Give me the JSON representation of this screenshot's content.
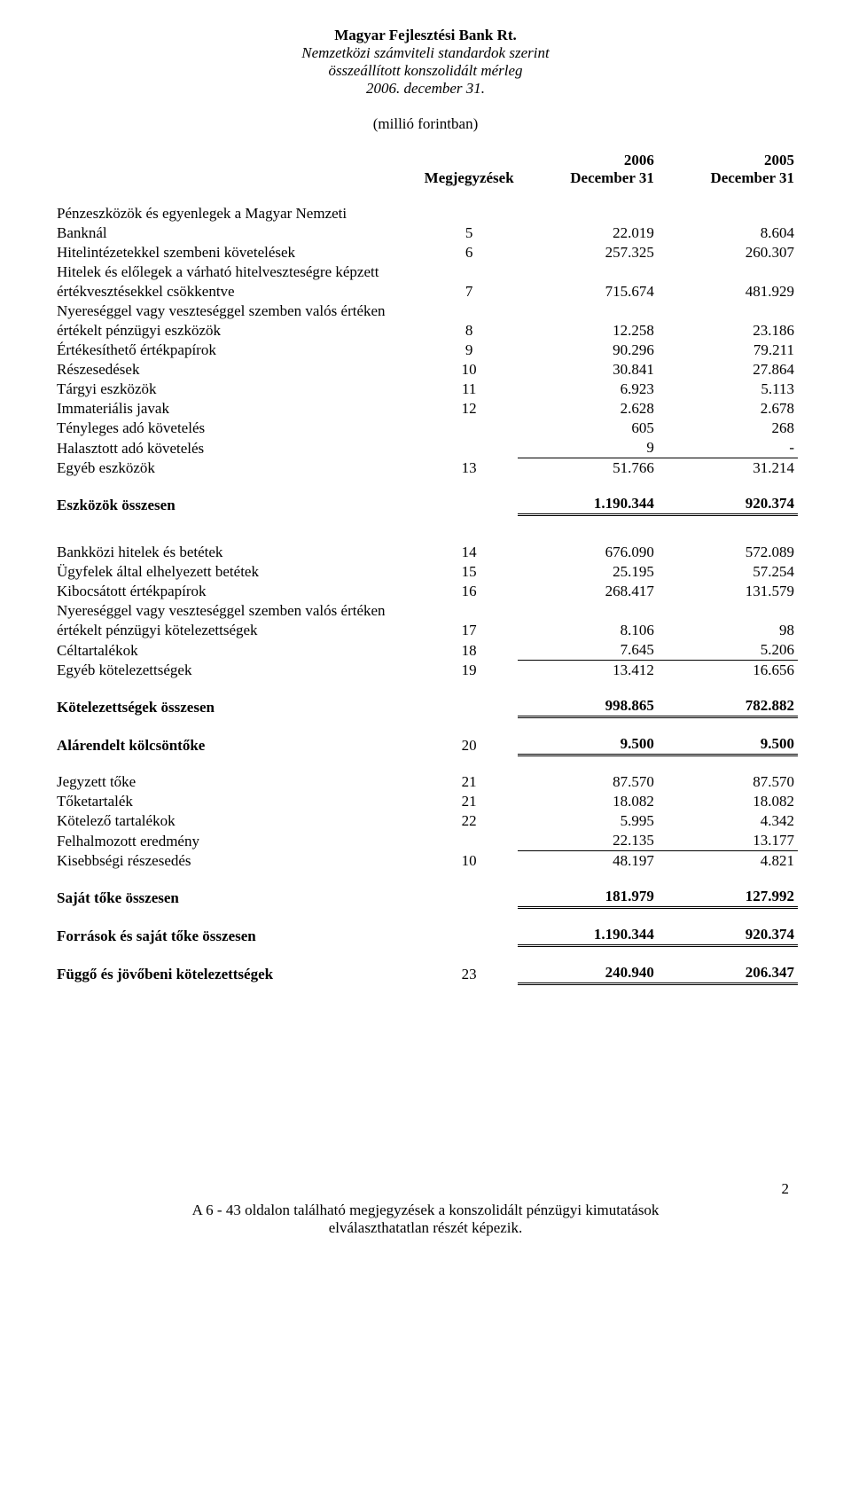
{
  "header": {
    "company": "Magyar Fejlesztési Bank Rt.",
    "subtitle1": "Nemzetközi számviteli standardok szerint",
    "subtitle2": "összeállított konszolidált mérleg",
    "date": "2006. december 31."
  },
  "unit": "(millió forintban)",
  "columns": {
    "notes": "Megjegyzések",
    "col1_a": "2006",
    "col1_b": "December 31",
    "col2_a": "2005",
    "col2_b": "December 31"
  },
  "assets": [
    {
      "label_a": "Pénzeszközök és egyenlegek a Magyar Nemzeti",
      "label_b": "Banknál",
      "note": "5",
      "v1": "22.019",
      "v2": "8.604"
    },
    {
      "label": "Hitelintézetekkel szembeni követelések",
      "note": "6",
      "v1": "257.325",
      "v2": "260.307"
    },
    {
      "label_a": "Hitelek és előlegek a várható hitelveszteségre képzett",
      "label_b": "értékvesztésekkel csökkentve",
      "note": "7",
      "v1": "715.674",
      "v2": "481.929"
    },
    {
      "label_a": "Nyereséggel vagy veszteséggel szemben valós értéken",
      "label_b": "értékelt pénzügyi eszközök",
      "note": "8",
      "v1": "12.258",
      "v2": "23.186"
    },
    {
      "label": "Értékesíthető értékpapírok",
      "note": "9",
      "v1": "90.296",
      "v2": "79.211"
    },
    {
      "label": "Részesedések",
      "note": "10",
      "v1": "30.841",
      "v2": "27.864"
    },
    {
      "label": "Tárgyi eszközök",
      "note": "11",
      "v1": "6.923",
      "v2": "5.113"
    },
    {
      "label": "Immateriális javak",
      "note": "12",
      "v1": "2.628",
      "v2": "2.678"
    },
    {
      "label": "Tényleges adó követelés",
      "note": "",
      "v1": "605",
      "v2": "268"
    },
    {
      "label": "Halasztott adó követelés",
      "note": "",
      "v1": "9",
      "v2": "-"
    },
    {
      "label": "Egyéb eszközök",
      "note": "13",
      "v1": "51.766",
      "v2": "31.214",
      "lastBeforeTotal": true
    }
  ],
  "assets_total": {
    "label": "Eszközök összesen",
    "v1": "1.190.344",
    "v2": "920.374"
  },
  "liabilities": [
    {
      "label": "Bankközi hitelek és betétek",
      "note": "14",
      "v1": "676.090",
      "v2": "572.089"
    },
    {
      "label": "Ügyfelek által elhelyezett betétek",
      "note": "15",
      "v1": "25.195",
      "v2": "57.254"
    },
    {
      "label": "Kibocsátott értékpapírok",
      "note": "16",
      "v1": "268.417",
      "v2": "131.579"
    },
    {
      "label_a": "Nyereséggel vagy veszteséggel szemben valós értéken",
      "label_b": "értékelt pénzügyi kötelezettségek",
      "note": "17",
      "v1": "8.106",
      "v2": "98"
    },
    {
      "label": "Céltartalékok",
      "note": "18",
      "v1": "7.645",
      "v2": "5.206"
    },
    {
      "label": "Egyéb kötelezettségek",
      "note": "19",
      "v1": "13.412",
      "v2": "16.656",
      "lastBeforeTotal": true
    }
  ],
  "liabilities_total": {
    "label": "Kötelezettségek összesen",
    "v1": "998.865",
    "v2": "782.882"
  },
  "subordinated": {
    "label": "Alárendelt kölcsöntőke",
    "note": "20",
    "v1": "9.500",
    "v2": "9.500"
  },
  "equity": [
    {
      "label": "Jegyzett tőke",
      "note": "21",
      "v1": "87.570",
      "v2": "87.570"
    },
    {
      "label": "Tőketartalék",
      "note": "21",
      "v1": "18.082",
      "v2": "18.082"
    },
    {
      "label": "Kötelező tartalékok",
      "note": "22",
      "v1": "5.995",
      "v2": "4.342"
    },
    {
      "label": "Felhalmozott eredmény",
      "note": "",
      "v1": "22.135",
      "v2": "13.177"
    },
    {
      "label": "Kisebbségi részesedés",
      "note": "10",
      "v1": "48.197",
      "v2": "4.821",
      "lastBeforeTotal": true
    }
  ],
  "equity_total": {
    "label": "Saját tőke összesen",
    "v1": "181.979",
    "v2": "127.992"
  },
  "grand_total": {
    "label": "Források és saját tőke összesen",
    "v1": "1.190.344",
    "v2": "920.374"
  },
  "contingent": {
    "label": "Függő és jövőbeni kötelezettségek",
    "note": "23",
    "v1": "240.940",
    "v2": "206.347"
  },
  "page_number": "2",
  "footer": {
    "line1": "A 6 - 43 oldalon található megjegyzések a konszolidált pénzügyi kimutatások",
    "line2": "elválaszthatatlan részét képezik."
  }
}
